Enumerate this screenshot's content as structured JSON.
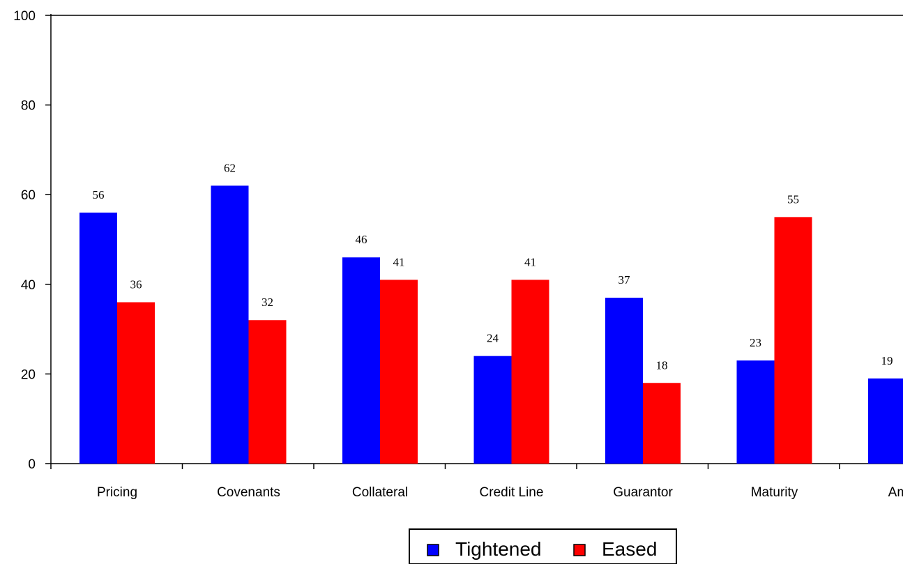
{
  "chart_data": {
    "type": "bar",
    "categories": [
      "Pricing",
      "Covenants",
      "Collateral",
      "Credit Line",
      "Guarantor",
      "Maturity",
      "Amort"
    ],
    "series": [
      {
        "name": "Tightened",
        "color": "#0000ff",
        "values": [
          56,
          62,
          46,
          24,
          37,
          23,
          19
        ],
        "labels": [
          "56",
          "62",
          "46",
          "24",
          "37",
          "23",
          "19"
        ]
      },
      {
        "name": "Eased",
        "color": "#ff0000",
        "values": [
          36,
          32,
          41,
          41,
          18,
          55,
          null
        ],
        "labels": [
          "36",
          "32",
          "41",
          "41",
          "18",
          "55",
          ""
        ]
      }
    ],
    "ylim": [
      0,
      100
    ],
    "yticks": [
      0,
      20,
      40,
      60,
      80,
      100
    ],
    "ytick_labels": [
      "0",
      "20",
      "40",
      "60",
      "80",
      "100"
    ],
    "grid": false,
    "legend_position": "bottom-center",
    "title": "",
    "xlabel": "",
    "ylabel": ""
  }
}
